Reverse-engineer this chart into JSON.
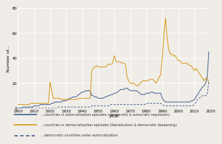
{
  "title": "",
  "xlabel": "year",
  "ylabel": "Number of...",
  "xlim": [
    1900,
    2020
  ],
  "ylim": [
    0,
    80
  ],
  "yticks": [
    0,
    20,
    40,
    60,
    80
  ],
  "xticks": [
    1900,
    1910,
    1920,
    1930,
    1940,
    1950,
    1960,
    1970,
    1980,
    1990,
    2000,
    2010,
    2020
  ],
  "bg_color": "#f0ede8",
  "line_autocratization_color": "#3a5a8a",
  "line_democratization_color": "#d4940a",
  "line_democratic_color": "#3a5a8a",
  "legend_labels": [
    "...countries in autocratization episodes (democratic & autocratic regression)",
    "...countries in democratization episodes (liberalisation & democratic deepening)",
    "...democratic countries under autocratization"
  ],
  "years": [
    1900,
    1901,
    1902,
    1903,
    1904,
    1905,
    1906,
    1907,
    1908,
    1909,
    1910,
    1911,
    1912,
    1913,
    1914,
    1915,
    1916,
    1917,
    1918,
    1919,
    1920,
    1921,
    1922,
    1923,
    1924,
    1925,
    1926,
    1927,
    1928,
    1929,
    1930,
    1931,
    1932,
    1933,
    1934,
    1935,
    1936,
    1937,
    1938,
    1939,
    1940,
    1941,
    1942,
    1943,
    1944,
    1945,
    1946,
    1947,
    1948,
    1949,
    1950,
    1951,
    1952,
    1953,
    1954,
    1955,
    1956,
    1957,
    1958,
    1959,
    1960,
    1961,
    1962,
    1963,
    1964,
    1965,
    1966,
    1967,
    1968,
    1969,
    1970,
    1971,
    1972,
    1973,
    1974,
    1975,
    1976,
    1977,
    1978,
    1979,
    1980,
    1981,
    1982,
    1983,
    1984,
    1985,
    1986,
    1987,
    1988,
    1989,
    1990,
    1991,
    1992,
    1993,
    1994,
    1995,
    1996,
    1997,
    1998,
    1999,
    2000,
    2001,
    2002,
    2003,
    2004,
    2005,
    2006,
    2007,
    2008,
    2009,
    2010,
    2011,
    2012,
    2013,
    2014,
    2015,
    2016,
    2017,
    2018,
    2019
  ],
  "autocratization": [
    0,
    0,
    0,
    1,
    1,
    1,
    1,
    1,
    1,
    1,
    2,
    2,
    2,
    2,
    3,
    3,
    3,
    3,
    3,
    3,
    3,
    4,
    4,
    5,
    5,
    5,
    5,
    5,
    6,
    6,
    6,
    7,
    8,
    8,
    9,
    9,
    9,
    10,
    11,
    12,
    13,
    13,
    14,
    14,
    14,
    14,
    10,
    10,
    9,
    9,
    8,
    8,
    8,
    8,
    9,
    9,
    10,
    10,
    11,
    11,
    12,
    12,
    13,
    14,
    15,
    15,
    15,
    16,
    16,
    15,
    14,
    14,
    14,
    14,
    14,
    13,
    12,
    11,
    11,
    11,
    12,
    12,
    12,
    13,
    13,
    12,
    12,
    12,
    12,
    12,
    8,
    6,
    5,
    5,
    5,
    5,
    5,
    5,
    5,
    5,
    5,
    5,
    5,
    5,
    5,
    5,
    5,
    5,
    6,
    6,
    7,
    9,
    11,
    13,
    15,
    17,
    18,
    20,
    25,
    45
  ],
  "democratization": [
    3,
    3,
    3,
    3,
    3,
    3,
    3,
    3,
    4,
    4,
    4,
    4,
    4,
    4,
    4,
    4,
    4,
    4,
    4,
    4,
    21,
    14,
    8,
    8,
    8,
    8,
    8,
    7,
    7,
    7,
    7,
    7,
    7,
    7,
    7,
    7,
    7,
    7,
    8,
    8,
    8,
    8,
    8,
    8,
    8,
    8,
    30,
    32,
    33,
    34,
    33,
    33,
    33,
    33,
    33,
    33,
    35,
    35,
    35,
    36,
    42,
    38,
    37,
    37,
    37,
    36,
    36,
    35,
    25,
    22,
    20,
    20,
    20,
    19,
    18,
    18,
    20,
    21,
    22,
    22,
    22,
    22,
    23,
    23,
    23,
    22,
    20,
    22,
    25,
    27,
    40,
    60,
    72,
    56,
    47,
    43,
    43,
    42,
    42,
    40,
    38,
    38,
    36,
    36,
    36,
    36,
    35,
    34,
    34,
    32,
    30,
    32,
    30,
    28,
    26,
    24,
    22,
    24,
    24,
    20
  ],
  "democratic_under_autocratization": [
    0,
    0,
    0,
    0,
    0,
    0,
    0,
    0,
    0,
    0,
    0,
    0,
    0,
    0,
    0,
    0,
    0,
    0,
    0,
    0,
    0,
    0,
    0,
    0,
    0,
    1,
    1,
    1,
    1,
    1,
    1,
    1,
    1,
    1,
    1,
    1,
    1,
    1,
    1,
    1,
    1,
    1,
    1,
    1,
    1,
    1,
    2,
    2,
    2,
    2,
    2,
    2,
    2,
    2,
    2,
    2,
    2,
    2,
    3,
    3,
    3,
    3,
    3,
    3,
    3,
    3,
    3,
    3,
    3,
    3,
    3,
    3,
    3,
    3,
    3,
    3,
    3,
    3,
    3,
    3,
    4,
    4,
    4,
    4,
    4,
    4,
    4,
    4,
    4,
    4,
    3,
    2,
    2,
    2,
    2,
    2,
    2,
    2,
    2,
    2,
    2,
    2,
    2,
    2,
    2,
    2,
    2,
    2,
    2,
    2,
    3,
    5,
    7,
    8,
    9,
    10,
    10,
    10,
    11,
    22
  ]
}
